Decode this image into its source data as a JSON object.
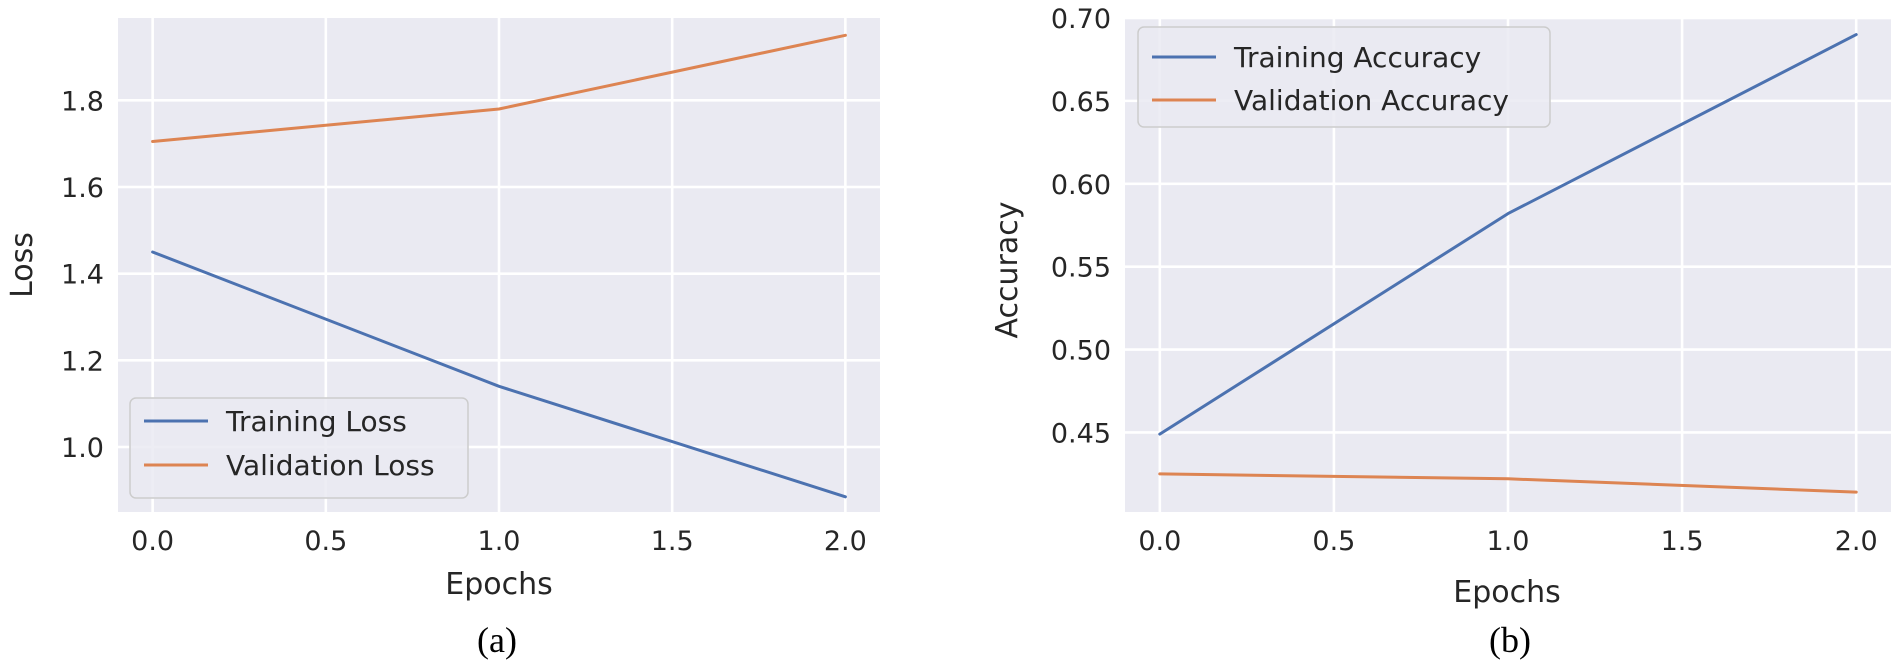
{
  "chart_data": [
    {
      "type": "line",
      "caption": "(a)",
      "xlabel": "Epochs",
      "ylabel": "Loss",
      "x": [
        0,
        1,
        2
      ],
      "xticks": [
        "0.0",
        "0.5",
        "1.0",
        "1.5",
        "2.0"
      ],
      "yticks": [
        "1.0",
        "1.2",
        "1.4",
        "1.6",
        "1.8"
      ],
      "xlim": [
        -0.1,
        2.1
      ],
      "ylim": [
        0.85,
        1.99
      ],
      "grid": true,
      "legend_position": "lower-left",
      "series": [
        {
          "name": "Training Loss",
          "color": "#4c72b0",
          "values": [
            1.45,
            1.14,
            0.885
          ]
        },
        {
          "name": "Validation Loss",
          "color": "#dd8452",
          "values": [
            1.705,
            1.78,
            1.95
          ]
        }
      ]
    },
    {
      "type": "line",
      "caption": "(b)",
      "xlabel": "Epochs",
      "ylabel": "Accuracy",
      "x": [
        0,
        1,
        2
      ],
      "xticks": [
        "0.0",
        "0.5",
        "1.0",
        "1.5",
        "2.0"
      ],
      "yticks": [
        "0.45",
        "0.50",
        "0.55",
        "0.60",
        "0.65",
        "0.70"
      ],
      "xlim": [
        -0.1,
        2.1
      ],
      "ylim": [
        0.402,
        0.7
      ],
      "grid": true,
      "legend_position": "upper-left",
      "series": [
        {
          "name": "Training Accuracy",
          "color": "#4c72b0",
          "values": [
            0.449,
            0.582,
            0.69
          ]
        },
        {
          "name": "Validation Accuracy",
          "color": "#dd8452",
          "values": [
            0.425,
            0.422,
            0.414
          ]
        }
      ]
    }
  ]
}
